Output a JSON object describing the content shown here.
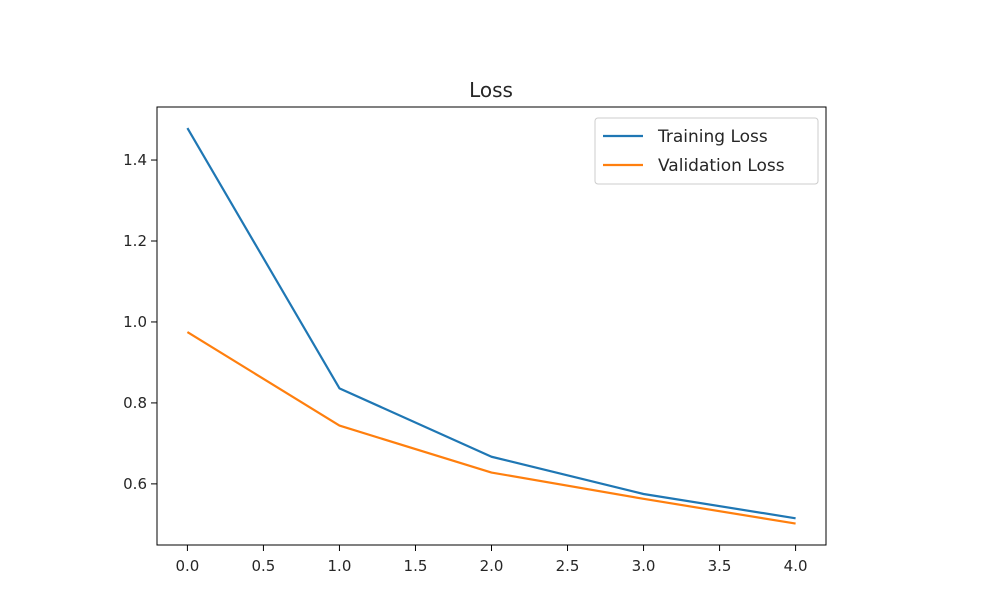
{
  "chart_data": {
    "type": "line",
    "title": "Loss",
    "xlabel": "",
    "ylabel": "",
    "x": [
      0,
      1,
      2,
      3,
      4
    ],
    "series": [
      {
        "name": "Training Loss",
        "values": [
          1.479,
          0.836,
          0.667,
          0.575,
          0.515
        ],
        "color": "#1f77b4"
      },
      {
        "name": "Validation Loss",
        "values": [
          0.975,
          0.744,
          0.628,
          0.563,
          0.502
        ],
        "color": "#ff7f0e"
      }
    ],
    "xlim": [
      -0.2,
      4.2
    ],
    "ylim": [
      0.449,
      1.531
    ],
    "xticks": [
      "0.0",
      "0.5",
      "1.0",
      "1.5",
      "2.0",
      "2.5",
      "3.0",
      "3.5",
      "4.0"
    ],
    "yticks": [
      "0.6",
      "0.8",
      "1.0",
      "1.2",
      "1.4"
    ],
    "grid": false,
    "legend": "top-right"
  }
}
